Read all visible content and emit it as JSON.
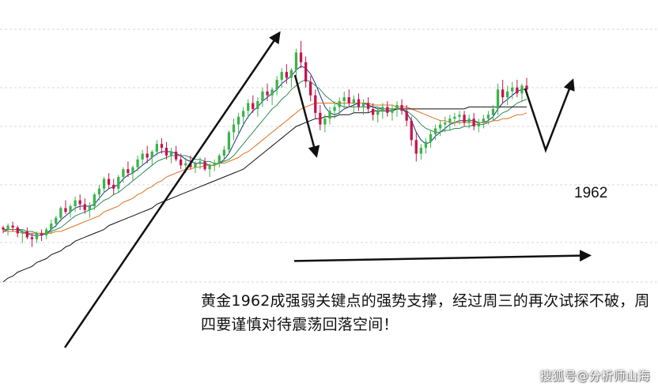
{
  "chart_data": {
    "type": "candlestick",
    "instrument": "黄金",
    "y_axis": {
      "min": 1900,
      "max": 2080,
      "tick_labels_visible": false
    },
    "grid": true,
    "colors": {
      "up": "#3cb34a",
      "down": "#c4144c",
      "ma_short": "#1a2f8f",
      "ma_mid": "#2e8b57",
      "ma_long": "#e07020",
      "ma_slow": "#111111",
      "support": "#111111"
    },
    "ohlc": [
      [
        1978,
        1979,
        1975,
        1977
      ],
      [
        1977,
        1980,
        1974,
        1979
      ],
      [
        1979,
        1981,
        1976,
        1978
      ],
      [
        1978,
        1979,
        1973,
        1975
      ],
      [
        1975,
        1977,
        1970,
        1976
      ],
      [
        1976,
        1978,
        1972,
        1973
      ],
      [
        1973,
        1975,
        1968,
        1972
      ],
      [
        1972,
        1976,
        1970,
        1975
      ],
      [
        1975,
        1977,
        1971,
        1974
      ],
      [
        1974,
        1978,
        1972,
        1977
      ],
      [
        1977,
        1982,
        1975,
        1980
      ],
      [
        1980,
        1984,
        1978,
        1983
      ],
      [
        1983,
        1989,
        1981,
        1988
      ],
      [
        1988,
        1992,
        1985,
        1986
      ],
      [
        1986,
        1990,
        1983,
        1989
      ],
      [
        1989,
        1994,
        1986,
        1992
      ],
      [
        1992,
        1995,
        1987,
        1990
      ],
      [
        1990,
        1993,
        1985,
        1987
      ],
      [
        1987,
        1991,
        1983,
        1989
      ],
      [
        1989,
        1996,
        1987,
        1995
      ],
      [
        1995,
        2000,
        1992,
        1998
      ],
      [
        1998,
        2004,
        1996,
        2003
      ],
      [
        2003,
        2006,
        1998,
        2000
      ],
      [
        2000,
        2003,
        1995,
        1998
      ],
      [
        1998,
        2005,
        1996,
        2004
      ],
      [
        2004,
        2009,
        2001,
        2008
      ],
      [
        2008,
        2012,
        2004,
        2006
      ],
      [
        2006,
        2010,
        2002,
        2009
      ],
      [
        2009,
        2015,
        2007,
        2013
      ],
      [
        2013,
        2018,
        2010,
        2016
      ],
      [
        2016,
        2020,
        2011,
        2014
      ],
      [
        2014,
        2018,
        2010,
        2017
      ],
      [
        2017,
        2023,
        2015,
        2021
      ],
      [
        2021,
        2024,
        2016,
        2019
      ],
      [
        2019,
        2022,
        2013,
        2015
      ],
      [
        2015,
        2019,
        2011,
        2017
      ],
      [
        2017,
        2020,
        2012,
        2013
      ],
      [
        2013,
        2016,
        2008,
        2010
      ],
      [
        2010,
        2014,
        2006,
        2011
      ],
      [
        2011,
        2015,
        2008,
        2009
      ],
      [
        2009,
        2012,
        2006,
        2011
      ],
      [
        2011,
        2014,
        2008,
        2012
      ],
      [
        2012,
        2014,
        2007,
        2008
      ],
      [
        2008,
        2011,
        2004,
        2010
      ],
      [
        2010,
        2013,
        2007,
        2011
      ],
      [
        2011,
        2016,
        2009,
        2015
      ],
      [
        2015,
        2020,
        2012,
        2018
      ],
      [
        2018,
        2028,
        2016,
        2027
      ],
      [
        2027,
        2034,
        2023,
        2031
      ],
      [
        2031,
        2037,
        2026,
        2035
      ],
      [
        2035,
        2040,
        2030,
        2038
      ],
      [
        2038,
        2044,
        2034,
        2042
      ],
      [
        2042,
        2046,
        2037,
        2039
      ],
      [
        2039,
        2045,
        2035,
        2043
      ],
      [
        2043,
        2050,
        2040,
        2048
      ],
      [
        2048,
        2052,
        2043,
        2046
      ],
      [
        2046,
        2050,
        2041,
        2049
      ],
      [
        2049,
        2056,
        2046,
        2054
      ],
      [
        2054,
        2060,
        2050,
        2058
      ],
      [
        2058,
        2062,
        2052,
        2055
      ],
      [
        2055,
        2060,
        2050,
        2059
      ],
      [
        2059,
        2070,
        2056,
        2068
      ],
      [
        2068,
        2074,
        2060,
        2063
      ],
      [
        2063,
        2066,
        2050,
        2053
      ],
      [
        2053,
        2056,
        2043,
        2046
      ],
      [
        2046,
        2049,
        2034,
        2037
      ],
      [
        2037,
        2041,
        2028,
        2031
      ],
      [
        2031,
        2036,
        2027,
        2034
      ],
      [
        2034,
        2040,
        2031,
        2038
      ],
      [
        2038,
        2043,
        2034,
        2040
      ],
      [
        2040,
        2045,
        2036,
        2043
      ],
      [
        2043,
        2048,
        2039,
        2045
      ],
      [
        2045,
        2049,
        2040,
        2042
      ],
      [
        2042,
        2046,
        2037,
        2044
      ],
      [
        2044,
        2047,
        2038,
        2040
      ],
      [
        2040,
        2044,
        2036,
        2042
      ],
      [
        2042,
        2045,
        2037,
        2039
      ],
      [
        2039,
        2042,
        2033,
        2036
      ],
      [
        2036,
        2040,
        2032,
        2038
      ],
      [
        2038,
        2042,
        2034,
        2040
      ],
      [
        2040,
        2043,
        2035,
        2037
      ],
      [
        2037,
        2041,
        2033,
        2039
      ],
      [
        2039,
        2043,
        2035,
        2041
      ],
      [
        2041,
        2044,
        2036,
        2038
      ],
      [
        2038,
        2041,
        2030,
        2033
      ],
      [
        2033,
        2035,
        2020,
        2023
      ],
      [
        2023,
        2027,
        2012,
        2016
      ],
      [
        2016,
        2021,
        2013,
        2019
      ],
      [
        2019,
        2024,
        2016,
        2022
      ],
      [
        2022,
        2028,
        2019,
        2026
      ],
      [
        2026,
        2031,
        2023,
        2029
      ],
      [
        2029,
        2033,
        2025,
        2031
      ],
      [
        2031,
        2035,
        2027,
        2032
      ],
      [
        2032,
        2036,
        2028,
        2034
      ],
      [
        2034,
        2037,
        2030,
        2035
      ],
      [
        2035,
        2038,
        2031,
        2036
      ],
      [
        2036,
        2038,
        2030,
        2032
      ],
      [
        2032,
        2036,
        2029,
        2034
      ],
      [
        2034,
        2037,
        2028,
        2030
      ],
      [
        2030,
        2034,
        2027,
        2032
      ],
      [
        2032,
        2036,
        2029,
        2034
      ],
      [
        2034,
        2038,
        2031,
        2036
      ],
      [
        2036,
        2041,
        2033,
        2039
      ],
      [
        2039,
        2052,
        2036,
        2049
      ],
      [
        2049,
        2054,
        2042,
        2045
      ],
      [
        2045,
        2051,
        2041,
        2048
      ],
      [
        2048,
        2053,
        2044,
        2050
      ],
      [
        2050,
        2054,
        2045,
        2047
      ],
      [
        2047,
        2052,
        2043,
        2051
      ],
      [
        2051,
        2055,
        2046,
        2049
      ]
    ],
    "moving_averages": [
      {
        "color_key": "ma_short",
        "values": [
          1976,
          1977,
          1977,
          1977,
          1976,
          1975,
          1974,
          1974,
          1974,
          1975,
          1977,
          1979,
          1982,
          1984,
          1986,
          1988,
          1989,
          1989,
          1989,
          1990,
          1993,
          1996,
          1998,
          1999,
          2000,
          2003,
          2005,
          2006,
          2008,
          2010,
          2012,
          2014,
          2016,
          2017,
          2017,
          2017,
          2016,
          2015,
          2013,
          2012,
          2011,
          2011,
          2011,
          2010,
          2010,
          2011,
          2013,
          2016,
          2021,
          2026,
          2031,
          2035,
          2038,
          2040,
          2043,
          2045,
          2047,
          2049,
          2052,
          2054,
          2056,
          2059,
          2061,
          2060,
          2057,
          2052,
          2046,
          2040,
          2037,
          2036,
          2037,
          2039,
          2040,
          2041,
          2042,
          2042,
          2041,
          2040,
          2039,
          2039,
          2039,
          2039,
          2039,
          2039,
          2037,
          2033,
          2027,
          2023,
          2021,
          2022,
          2025,
          2027,
          2029,
          2031,
          2032,
          2033,
          2033,
          2033,
          2033,
          2032,
          2032,
          2033,
          2035,
          2039,
          2042,
          2044,
          2046,
          2048,
          2049,
          2049
        ]
      },
      {
        "color_key": "ma_mid",
        "values": [
          1977,
          1977,
          1977,
          1977,
          1977,
          1976,
          1976,
          1975,
          1975,
          1975,
          1976,
          1977,
          1978,
          1980,
          1982,
          1984,
          1985,
          1986,
          1987,
          1988,
          1990,
          1992,
          1993,
          1995,
          1996,
          1998,
          2000,
          2002,
          2004,
          2006,
          2008,
          2010,
          2012,
          2013,
          2014,
          2015,
          2015,
          2015,
          2015,
          2014,
          2013,
          2013,
          2012,
          2012,
          2011,
          2011,
          2012,
          2013,
          2015,
          2018,
          2021,
          2024,
          2027,
          2030,
          2033,
          2036,
          2039,
          2041,
          2044,
          2046,
          2049,
          2051,
          2053,
          2054,
          2053,
          2051,
          2049,
          2046,
          2044,
          2042,
          2041,
          2040,
          2040,
          2040,
          2040,
          2040,
          2040,
          2040,
          2040,
          2039,
          2039,
          2039,
          2039,
          2039,
          2038,
          2036,
          2034,
          2031,
          2029,
          2028,
          2027,
          2027,
          2028,
          2028,
          2029,
          2029,
          2030,
          2030,
          2031,
          2031,
          2031,
          2032,
          2033,
          2035,
          2037,
          2038,
          2040,
          2042,
          2043,
          2044
        ]
      },
      {
        "color_key": "ma_long",
        "values": [
          1976,
          1976,
          1976,
          1976,
          1975,
          1975,
          1975,
          1975,
          1975,
          1975,
          1975,
          1976,
          1976,
          1977,
          1978,
          1979,
          1980,
          1981,
          1982,
          1983,
          1984,
          1986,
          1987,
          1988,
          1989,
          1991,
          1992,
          1993,
          1995,
          1996,
          1998,
          1999,
          2001,
          2002,
          2004,
          2005,
          2006,
          2007,
          2008,
          2008,
          2009,
          2009,
          2010,
          2010,
          2010,
          2011,
          2011,
          2012,
          2013,
          2014,
          2016,
          2017,
          2019,
          2021,
          2023,
          2025,
          2027,
          2029,
          2031,
          2033,
          2035,
          2037,
          2039,
          2040,
          2041,
          2042,
          2042,
          2042,
          2042,
          2042,
          2042,
          2042,
          2042,
          2042,
          2042,
          2042,
          2042,
          2041,
          2041,
          2041,
          2041,
          2041,
          2040,
          2040,
          2040,
          2039,
          2038,
          2037,
          2036,
          2035,
          2034,
          2033,
          2033,
          2032,
          2032,
          2032,
          2032,
          2032,
          2032,
          2032,
          2032,
          2032,
          2033,
          2033,
          2034,
          2034,
          2035,
          2036,
          2036,
          2037
        ]
      },
      {
        "color_key": "ma_slow",
        "values": [
          1950,
          1952,
          1953,
          1955,
          1956,
          1957,
          1958,
          1960,
          1961,
          1962,
          1964,
          1965,
          1966,
          1968,
          1969,
          1971,
          1972,
          1973,
          1974,
          1975,
          1976,
          1977,
          1979,
          1980,
          1981,
          1982,
          1983,
          1984,
          1985,
          1986,
          1987,
          1988,
          1990,
          1991,
          1992,
          1993,
          1994,
          1995,
          1996,
          1997,
          1998,
          1999,
          2000,
          2001,
          2002,
          2003,
          2004,
          2005,
          2006,
          2007,
          2008,
          2010,
          2012,
          2014,
          2016,
          2018,
          2020,
          2022,
          2024,
          2026,
          2028,
          2030,
          2031,
          2032,
          2033,
          2034,
          2034,
          2035,
          2035,
          2035,
          2036,
          2036,
          2036,
          2037,
          2037,
          2037,
          2037,
          2038,
          2038,
          2038,
          2038,
          2038,
          2039,
          2039,
          2039,
          2039,
          2039,
          2039,
          2039,
          2039,
          2039,
          2039,
          2039,
          2039,
          2039,
          2039,
          2039,
          2040,
          2040,
          2040,
          2040,
          2040,
          2040,
          2040,
          2040,
          2040,
          2040,
          2040,
          2040,
          2040
        ]
      }
    ],
    "support_level": 1962,
    "support_label": "1962",
    "annotation_text": "黄金1962成强弱关键点的强势支撑，经过周三的再次试探不破，周四要谨慎对待震荡回落空间！",
    "watermark": "搜狐号@分析师山海"
  }
}
